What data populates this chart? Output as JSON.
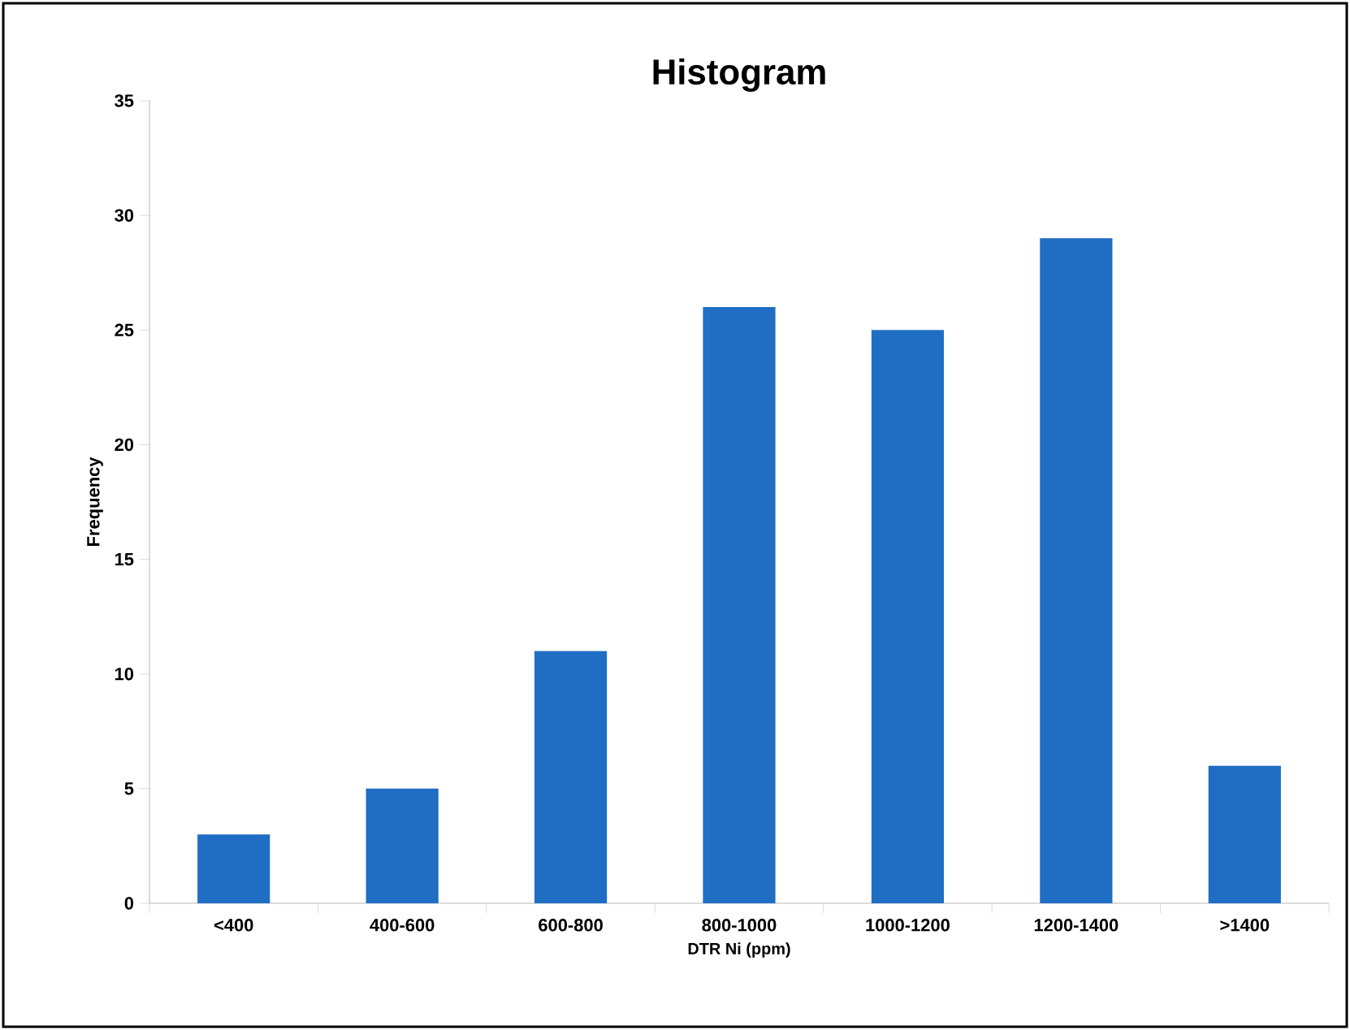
{
  "chart_data": {
    "type": "bar",
    "title": "Histogram",
    "xlabel": "DTR Ni (ppm)",
    "ylabel": "Frequency",
    "categories": [
      "<400",
      "400-600",
      "600-800",
      "800-1000",
      "1000-1200",
      "1200-1400",
      ">1400"
    ],
    "values": [
      3,
      5,
      11,
      26,
      25,
      29,
      6
    ],
    "color": "#1f6ec4",
    "ylim": [
      0,
      35
    ],
    "yticks": [
      0,
      5,
      10,
      15,
      20,
      25,
      30,
      35
    ]
  }
}
